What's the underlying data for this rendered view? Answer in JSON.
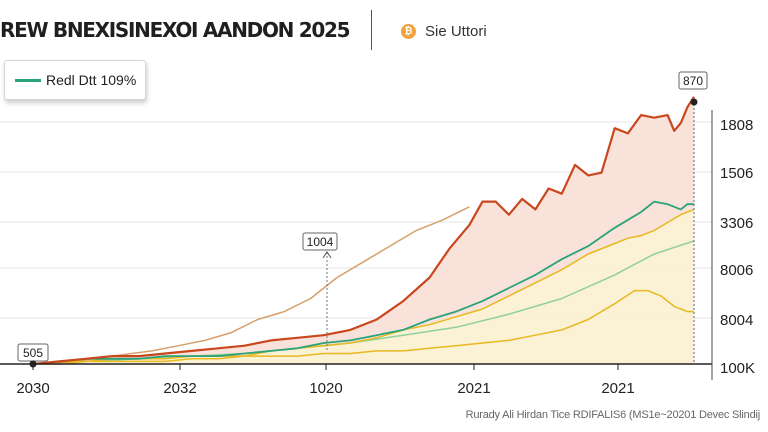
{
  "header": {
    "title": "REW BNEXISINEXOI AANDON 2025",
    "brand_text": "Sie Uttori",
    "brand_icon": "bitcoin-icon"
  },
  "footer": {
    "source_text": "Rurady Ali Hirdan Tice RDIFALIS6 (MS1e~20201 Devec Slindij"
  },
  "chart_data": {
    "type": "line",
    "title": "REW BNEXISINEXOI AANDON 2025",
    "x_tick_labels": [
      "2030",
      "2032",
      "1020",
      "2021",
      "2021"
    ],
    "y_tick_labels": [
      "1808",
      "1506",
      "3306",
      "8006",
      "8004",
      "100K"
    ],
    "legend": [
      {
        "label": "Redl Dtt 109%",
        "color": "#2aa27a"
      }
    ],
    "grid": true,
    "annotations": {
      "start": "505",
      "mid": "1004",
      "peak": "870"
    },
    "xlim": [
      0,
      100
    ],
    "ylim": [
      0,
      100
    ],
    "series": [
      {
        "name": "orange-red",
        "color": "#c9471d",
        "fill": "#f8ddd3",
        "x": [
          0,
          4,
          8,
          12,
          16,
          20,
          24,
          28,
          32,
          36,
          40,
          44,
          48,
          52,
          56,
          60,
          63,
          66,
          68,
          70,
          72,
          74,
          76,
          78,
          80,
          82,
          84,
          86,
          88,
          90,
          92,
          94,
          96,
          97,
          98,
          99,
          100
        ],
        "y": [
          0,
          1,
          2,
          3,
          3,
          4,
          5,
          6,
          7,
          9,
          10,
          11,
          13,
          17,
          24,
          33,
          44,
          53,
          62,
          62,
          57,
          63,
          59,
          67,
          65,
          76,
          72,
          73,
          90,
          88,
          95,
          94,
          95,
          89,
          92,
          98,
          102
        ]
      },
      {
        "name": "green",
        "color": "#2aa27a",
        "x": [
          0,
          4,
          8,
          12,
          16,
          20,
          24,
          28,
          32,
          36,
          40,
          44,
          48,
          52,
          56,
          60,
          64,
          68,
          72,
          76,
          80,
          84,
          88,
          92,
          94,
          96,
          98,
          99,
          100
        ],
        "y": [
          0,
          1,
          2,
          2,
          2,
          3,
          3,
          3,
          4,
          5,
          6,
          8,
          9,
          11,
          13,
          17,
          20,
          24,
          29,
          34,
          40,
          45,
          52,
          58,
          62,
          61,
          59,
          61,
          61
        ]
      },
      {
        "name": "yellow-upper",
        "color": "#e8b820",
        "fill": "#fbf3d3",
        "x": [
          0,
          4,
          8,
          12,
          16,
          20,
          24,
          28,
          32,
          36,
          40,
          44,
          48,
          52,
          56,
          60,
          64,
          68,
          72,
          76,
          80,
          84,
          88,
          90,
          92,
          94,
          96,
          98,
          100
        ],
        "y": [
          0,
          1,
          1,
          2,
          2,
          2,
          3,
          3,
          3,
          5,
          6,
          7,
          8,
          10,
          13,
          15,
          18,
          21,
          26,
          31,
          36,
          42,
          46,
          48,
          49,
          51,
          54,
          57,
          59
        ]
      },
      {
        "name": "yellow-lower",
        "color": "#e8b820",
        "x": [
          0,
          4,
          8,
          12,
          16,
          20,
          24,
          28,
          32,
          36,
          40,
          44,
          48,
          52,
          56,
          60,
          64,
          68,
          72,
          76,
          80,
          84,
          88,
          91,
          93,
          95,
          97,
          99,
          100
        ],
        "y": [
          0,
          0,
          1,
          1,
          1,
          1,
          2,
          2,
          3,
          3,
          3,
          4,
          4,
          5,
          5,
          6,
          7,
          8,
          9,
          11,
          13,
          17,
          23,
          28,
          28,
          26,
          22,
          20,
          20
        ]
      },
      {
        "name": "tan-early",
        "color": "#d6a06a",
        "x": [
          0,
          6,
          12,
          18,
          22,
          26,
          30,
          34,
          38,
          42,
          46,
          50,
          54,
          58,
          62,
          66
        ],
        "y": [
          0,
          1,
          3,
          5,
          7,
          9,
          12,
          17,
          20,
          25,
          33,
          39,
          45,
          51,
          55,
          60
        ]
      },
      {
        "name": "green-light",
        "color": "#8fd09a",
        "x": [
          0,
          8,
          16,
          24,
          32,
          40,
          48,
          56,
          64,
          72,
          80,
          88,
          94,
          100
        ],
        "y": [
          0,
          1,
          2,
          3,
          4,
          6,
          8,
          11,
          14,
          19,
          25,
          34,
          42,
          47
        ]
      }
    ]
  }
}
